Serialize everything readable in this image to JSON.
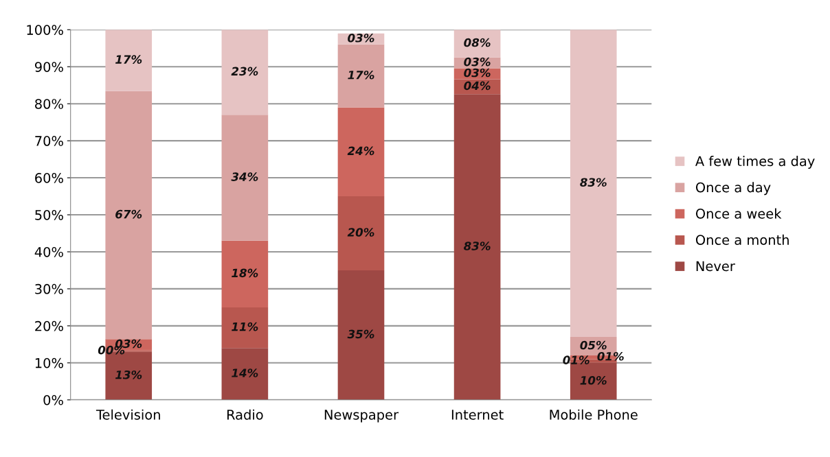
{
  "chart_data": {
    "type": "bar",
    "stacked": true,
    "categories": [
      "Television",
      "Radio",
      "Newspaper",
      "Internet",
      "Mobile Phone"
    ],
    "series": [
      {
        "name": "Never",
        "color": "#9e4844",
        "values": [
          13,
          14,
          35,
          82.6,
          10
        ],
        "value_labels": [
          "13%",
          "14%",
          "35%",
          "83%",
          "10%"
        ]
      },
      {
        "name": "Once a month",
        "color": "#b8574f",
        "values": [
          0.4,
          11,
          20,
          4,
          1
        ],
        "value_labels": [
          "00%",
          "11%",
          "20%",
          "04%",
          "01%"
        ]
      },
      {
        "name": "Once a week",
        "color": "#cd665e",
        "values": [
          3,
          18,
          24,
          3,
          1
        ],
        "value_labels": [
          "03%",
          "18%",
          "24%",
          "03%",
          "01%"
        ]
      },
      {
        "name": "Once a day",
        "color": "#d9a3a1",
        "values": [
          67,
          34,
          17,
          2.9,
          5
        ],
        "value_labels": [
          "67%",
          "34%",
          "17%",
          "03%",
          "05%"
        ]
      },
      {
        "name": "A few times a day",
        "color": "#e6c3c3",
        "values": [
          16.6,
          23,
          3,
          7.5,
          83
        ],
        "value_labels": [
          "17%",
          "23%",
          "03%",
          "08%",
          "83%"
        ]
      }
    ],
    "ylim": [
      0,
      100
    ],
    "yticks": [
      {
        "value": 0,
        "label": "0%"
      },
      {
        "value": 10,
        "label": "10%"
      },
      {
        "value": 20,
        "label": "20%"
      },
      {
        "value": 30,
        "label": "30%"
      },
      {
        "value": 40,
        "label": "40%"
      },
      {
        "value": 50,
        "label": "50%"
      },
      {
        "value": 60,
        "label": "60%"
      },
      {
        "value": 70,
        "label": "70%"
      },
      {
        "value": 80,
        "label": "80%"
      },
      {
        "value": 90,
        "label": "90%"
      },
      {
        "value": 100,
        "label": "100%"
      }
    ],
    "grid": "y",
    "legend": "right"
  }
}
